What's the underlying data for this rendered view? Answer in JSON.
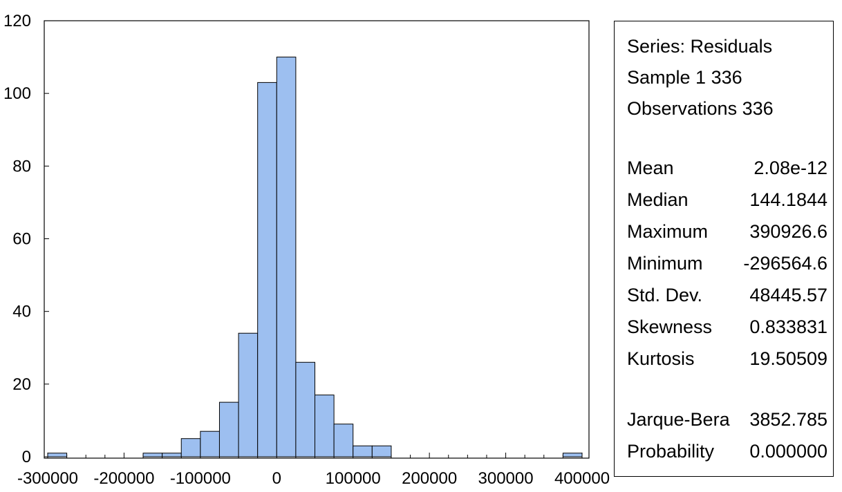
{
  "chart_data": {
    "type": "bar",
    "subtype": "histogram",
    "bin_width": 25000,
    "bins": [
      {
        "start": -300000,
        "end": -275000,
        "count": 1
      },
      {
        "start": -275000,
        "end": -250000,
        "count": 0
      },
      {
        "start": -250000,
        "end": -225000,
        "count": 0
      },
      {
        "start": -225000,
        "end": -200000,
        "count": 0
      },
      {
        "start": -200000,
        "end": -175000,
        "count": 0
      },
      {
        "start": -175000,
        "end": -150000,
        "count": 1
      },
      {
        "start": -150000,
        "end": -125000,
        "count": 1
      },
      {
        "start": -125000,
        "end": -100000,
        "count": 5
      },
      {
        "start": -100000,
        "end": -75000,
        "count": 7
      },
      {
        "start": -75000,
        "end": -50000,
        "count": 15
      },
      {
        "start": -50000,
        "end": -25000,
        "count": 34
      },
      {
        "start": -25000,
        "end": 0,
        "count": 103
      },
      {
        "start": 0,
        "end": 25000,
        "count": 110
      },
      {
        "start": 25000,
        "end": 50000,
        "count": 26
      },
      {
        "start": 50000,
        "end": 75000,
        "count": 17
      },
      {
        "start": 75000,
        "end": 100000,
        "count": 9
      },
      {
        "start": 100000,
        "end": 125000,
        "count": 3
      },
      {
        "start": 125000,
        "end": 150000,
        "count": 3
      },
      {
        "start": 150000,
        "end": 175000,
        "count": 0
      },
      {
        "start": 175000,
        "end": 200000,
        "count": 0
      },
      {
        "start": 200000,
        "end": 225000,
        "count": 0
      },
      {
        "start": 225000,
        "end": 250000,
        "count": 0
      },
      {
        "start": 250000,
        "end": 275000,
        "count": 0
      },
      {
        "start": 275000,
        "end": 300000,
        "count": 0
      },
      {
        "start": 300000,
        "end": 325000,
        "count": 0
      },
      {
        "start": 325000,
        "end": 350000,
        "count": 0
      },
      {
        "start": 350000,
        "end": 375000,
        "count": 0
      },
      {
        "start": 375000,
        "end": 400000,
        "count": 1
      }
    ],
    "xlim": [
      -300000,
      400000
    ],
    "ylim": [
      0,
      120
    ],
    "x_ticks": [
      "-300000",
      "-200000",
      "-100000",
      "0",
      "100000",
      "200000",
      "300000",
      "400000"
    ],
    "x_tick_values": [
      -300000,
      -200000,
      -100000,
      0,
      100000,
      200000,
      300000,
      400000
    ],
    "y_ticks": [
      "0",
      "20",
      "40",
      "60",
      "80",
      "100",
      "120"
    ],
    "y_tick_values": [
      0,
      20,
      40,
      60,
      80,
      100,
      120
    ],
    "grid": false,
    "bar_color": "#9dbff0",
    "title": "",
    "xlabel": "",
    "ylabel": ""
  },
  "stats": {
    "series_line": "Series: Residuals",
    "sample_line": "Sample 1 336",
    "observations_line": "Observations 336",
    "rows": [
      {
        "label": "Mean",
        "value": "2.08e-12"
      },
      {
        "label": "Median",
        "value": "144.1844"
      },
      {
        "label": "Maximum",
        "value": "390926.6"
      },
      {
        "label": "Minimum",
        "value": "-296564.6"
      },
      {
        "label": "Std. Dev.",
        "value": "48445.57"
      },
      {
        "label": "Skewness",
        "value": "0.833831"
      },
      {
        "label": "Kurtosis",
        "value": "19.50509"
      }
    ],
    "test_rows": [
      {
        "label": "Jarque-Bera",
        "value": "3852.785"
      },
      {
        "label": "Probability",
        "value": "0.000000"
      }
    ]
  }
}
